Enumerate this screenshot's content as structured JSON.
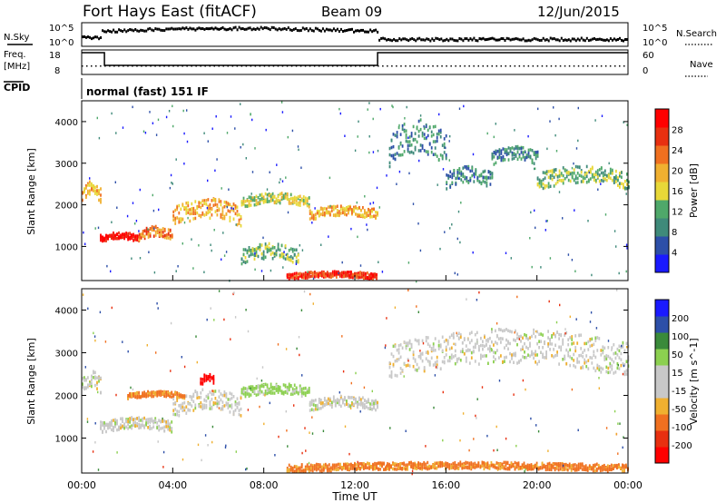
{
  "header": {
    "title": "Fort Hays East (fitACF)",
    "beam": "Beam 09",
    "date": "12/Jun/2015"
  },
  "strip": {
    "nsky_label": "N.Sky",
    "nsearch_label": "N.Search",
    "nsky_top": "10^5",
    "nsky_bottom": "10^0",
    "freq_label": "Freq.",
    "freq_unit": "[MHz]",
    "freq_top": "18",
    "freq_bottom": "8",
    "nave_label": "Nave",
    "nave_top": "60",
    "nave_bottom": "0",
    "cpid_label": "CPID",
    "cpid_value": "normal (fast) 151 IF"
  },
  "colors": {
    "power": [
      "#1a1aff",
      "#2d4fa8",
      "#3f8a7a",
      "#4fa86a",
      "#e8d838",
      "#f0b030",
      "#f07020",
      "#e83010",
      "#ff0000"
    ],
    "velocity": [
      "#ff0000",
      "#e83010",
      "#f07020",
      "#f0b030",
      "#c8c8c8",
      "#c8c8c8",
      "#8cd050",
      "#3a8a3a",
      "#2d4fa8",
      "#1a1aff"
    ]
  },
  "chart_data": [
    {
      "type": "heatmap",
      "name": "power",
      "xlabel": "",
      "ylabel": "Slant Range [km]",
      "xlim": [
        0,
        24
      ],
      "ylim": [
        180,
        4500
      ],
      "yticks": [
        "4000",
        "3000",
        "2000",
        "1000"
      ],
      "colorbar_label": "Power [dB]",
      "colorbar_ticks": [
        "28",
        "24",
        "20",
        "16",
        "12",
        "8",
        "4"
      ],
      "colorbar_range": [
        0,
        32
      ],
      "bands": [
        {
          "t": [
            0.0,
            0.8
          ],
          "r": [
            2000,
            2450
          ],
          "lvl": 5
        },
        {
          "t": [
            0.8,
            2.5
          ],
          "r": [
            1080,
            1280
          ],
          "lvl": 8
        },
        {
          "t": [
            2.5,
            4.0
          ],
          "r": [
            1100,
            1400
          ],
          "lvl": 6
        },
        {
          "t": [
            4.0,
            7.0
          ],
          "r": [
            1400,
            2000
          ],
          "lvl": 5
        },
        {
          "t": [
            7.0,
            10.0
          ],
          "r": [
            1900,
            2200
          ],
          "lvl": 4
        },
        {
          "t": [
            10.0,
            13.0
          ],
          "r": [
            1600,
            1900
          ],
          "lvl": 5
        },
        {
          "t": [
            7.0,
            9.5
          ],
          "r": [
            500,
            950
          ],
          "lvl": 3
        },
        {
          "t": [
            9.0,
            13.0
          ],
          "r": [
            180,
            350
          ],
          "lvl": 7
        },
        {
          "t": [
            13.5,
            16.0
          ],
          "r": [
            2800,
            3800
          ],
          "lvl": 2
        },
        {
          "t": [
            16.0,
            18.0
          ],
          "r": [
            2300,
            2800
          ],
          "lvl": 2
        },
        {
          "t": [
            18.0,
            20.0
          ],
          "r": [
            2900,
            3300
          ],
          "lvl": 2
        },
        {
          "t": [
            20.0,
            24.0
          ],
          "r": [
            2300,
            2800
          ],
          "lvl": 3
        }
      ]
    },
    {
      "type": "heatmap",
      "name": "velocity",
      "xlabel": "Time UT",
      "ylabel": "Slant Range [km]",
      "xlim": [
        0,
        24
      ],
      "ylim": [
        180,
        4500
      ],
      "xticks": [
        "00:00",
        "04:00",
        "08:00",
        "12:00",
        "16:00",
        "20:00",
        "00:00"
      ],
      "yticks": [
        "4000",
        "3000",
        "2000",
        "1000"
      ],
      "colorbar_label": "Velocity [m s^-1]",
      "colorbar_ticks": [
        "200",
        "100",
        "50",
        "15",
        "-15",
        "-50",
        "-100",
        "-200"
      ],
      "colorbar_range": [
        -250,
        250
      ],
      "bands": [
        {
          "t": [
            0.0,
            0.8
          ],
          "r": [
            2000,
            2450
          ],
          "v": 0
        },
        {
          "t": [
            0.8,
            4.0
          ],
          "r": [
            1080,
            1400
          ],
          "v": 0
        },
        {
          "t": [
            4.0,
            7.0
          ],
          "r": [
            1400,
            2000
          ],
          "v": 0
        },
        {
          "t": [
            7.0,
            10.0
          ],
          "r": [
            1900,
            2200
          ],
          "v": 30
        },
        {
          "t": [
            10.0,
            13.0
          ],
          "r": [
            1600,
            1900
          ],
          "v": 0
        },
        {
          "t": [
            5.2,
            5.8
          ],
          "r": [
            2200,
            2450
          ],
          "v": -220
        },
        {
          "t": [
            2.0,
            4.5
          ],
          "r": [
            1900,
            2050
          ],
          "v": -60
        },
        {
          "t": [
            9.0,
            24.0
          ],
          "r": [
            180,
            380
          ],
          "v": -60
        },
        {
          "t": [
            13.5,
            24.0
          ],
          "r": [
            2300,
            3300
          ],
          "v": 0
        }
      ]
    }
  ]
}
